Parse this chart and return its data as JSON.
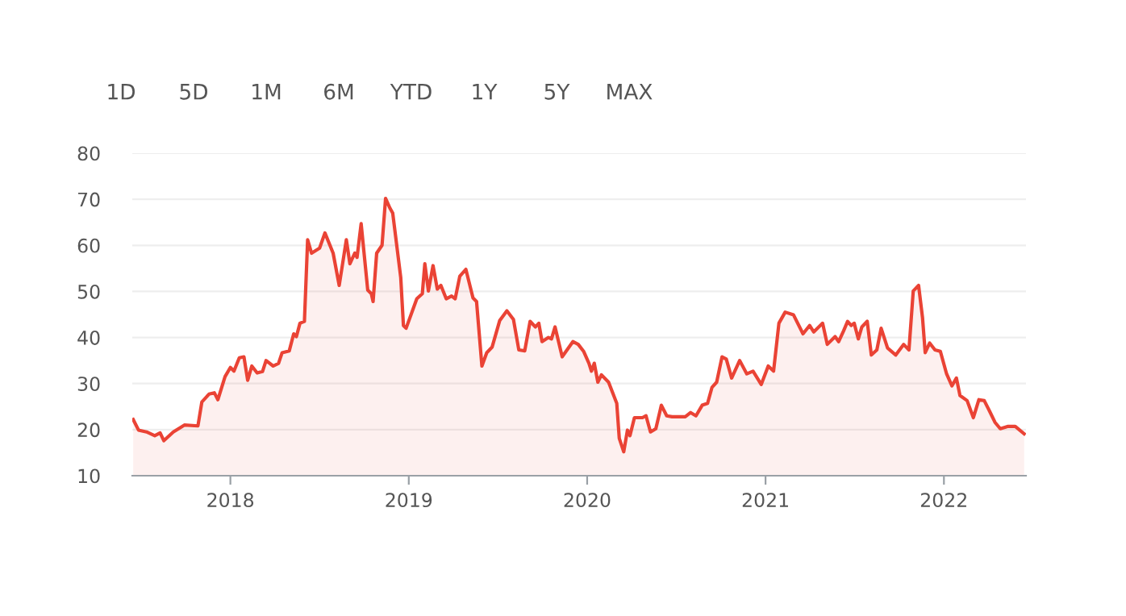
{
  "chart_data": {
    "type": "area",
    "annotations": [
      "1D",
      "5D",
      "1M",
      "6M",
      "YTD",
      "1Y",
      "5Y",
      "MAX"
    ],
    "x": [
      2017.455,
      2017.485,
      2017.53,
      2017.576,
      2017.606,
      2017.627,
      2017.68,
      2017.742,
      2017.818,
      2017.84,
      2017.88,
      2017.91,
      2017.93,
      2017.97,
      2018.0,
      2018.02,
      2018.05,
      2018.076,
      2018.097,
      2018.12,
      2018.15,
      2018.18,
      2018.2,
      2018.24,
      2018.27,
      2018.29,
      2018.33,
      2018.355,
      2018.37,
      2018.39,
      2018.415,
      2018.433,
      2018.455,
      2018.5,
      2018.53,
      2018.576,
      2018.61,
      2018.65,
      2018.67,
      2018.697,
      2018.71,
      2018.733,
      2018.77,
      2018.79,
      2018.8,
      2018.82,
      2018.85,
      2018.87,
      2018.894,
      2018.91,
      2018.955,
      2018.97,
      2018.985,
      2019.045,
      2019.076,
      2019.09,
      2019.11,
      2019.136,
      2019.16,
      2019.18,
      2019.21,
      2019.24,
      2019.26,
      2019.286,
      2019.32,
      2019.36,
      2019.38,
      2019.41,
      2019.437,
      2019.467,
      2019.51,
      2019.55,
      2019.587,
      2019.617,
      2019.65,
      2019.68,
      2019.71,
      2019.729,
      2019.747,
      2019.783,
      2019.8,
      2019.82,
      2019.86,
      2019.92,
      2019.95,
      2019.98,
      2020.01,
      2020.024,
      2020.04,
      2020.06,
      2020.08,
      2020.12,
      2020.166,
      2020.18,
      2020.205,
      2020.226,
      2020.24,
      2020.265,
      2020.31,
      2020.33,
      2020.355,
      2020.385,
      2020.416,
      2020.446,
      2020.476,
      2020.55,
      2020.58,
      2020.61,
      2020.645,
      2020.675,
      2020.7,
      2020.726,
      2020.756,
      2020.78,
      2020.81,
      2020.855,
      2020.895,
      2020.93,
      2020.976,
      2021.015,
      2021.045,
      2021.075,
      2021.11,
      2021.157,
      2021.21,
      2021.247,
      2021.27,
      2021.32,
      2021.346,
      2021.39,
      2021.41,
      2021.437,
      2021.46,
      2021.48,
      2021.497,
      2021.52,
      2021.54,
      2021.57,
      2021.593,
      2021.624,
      2021.648,
      2021.684,
      2021.73,
      2021.774,
      2021.804,
      2021.828,
      2021.858,
      2021.88,
      2021.895,
      2021.92,
      2021.95,
      2021.98,
      2022.015,
      2022.045,
      2022.07,
      2022.09,
      2022.13,
      2022.165,
      2022.196,
      2022.226,
      2022.256,
      2022.286,
      2022.316,
      2022.36,
      2022.4,
      2022.45
    ],
    "series": [
      {
        "color": "#ea4335",
        "values": [
          22.2,
          19.9,
          19.5,
          18.7,
          19.3,
          17.6,
          19.5,
          21,
          20.8,
          26,
          27.7,
          28,
          26.5,
          31.5,
          33.5,
          32.7,
          35.6,
          35.8,
          30.7,
          33.8,
          32.3,
          32.6,
          35,
          33.8,
          34.4,
          36.7,
          37.1,
          40.8,
          40.2,
          43.1,
          43.5,
          61.2,
          58.3,
          59.4,
          62.7,
          58.3,
          51.3,
          61.2,
          56,
          58.3,
          57.4,
          64.7,
          50.3,
          49.5,
          47.8,
          58.3,
          60,
          70.2,
          68.1,
          67,
          53,
          42.6,
          42,
          48.4,
          49.5,
          56,
          50.1,
          55.6,
          50.5,
          51.3,
          48.4,
          49,
          48.4,
          53.3,
          54.8,
          48.6,
          47.8,
          33.8,
          36.7,
          37.9,
          43.7,
          45.8,
          43.9,
          37.3,
          37.1,
          43.5,
          42.3,
          43.1,
          39.1,
          40,
          39.7,
          42.3,
          35.8,
          39.1,
          38.5,
          37,
          34.4,
          32.7,
          34.4,
          30.3,
          31.9,
          30.3,
          25.7,
          18.1,
          15.2,
          19.9,
          18.7,
          22.6,
          22.6,
          23,
          19.5,
          20.2,
          25.3,
          23,
          22.8,
          22.8,
          23.7,
          23,
          25.3,
          25.7,
          29.2,
          30.3,
          35.8,
          35.3,
          31.2,
          35,
          32.1,
          32.7,
          29.8,
          33.8,
          32.7,
          43.1,
          45.5,
          44.9,
          40.8,
          42.6,
          41.2,
          43.1,
          38.5,
          40.2,
          39.1,
          41.4,
          43.5,
          42.6,
          43.1,
          39.7,
          42.3,
          43.5,
          36.2,
          37.3,
          42,
          37.7,
          36.2,
          38.5,
          37.3,
          50.1,
          51.3,
          44.3,
          36.7,
          38.8,
          37.3,
          37,
          32.1,
          29.5,
          31.2,
          27.4,
          26.3,
          22.6,
          26.5,
          26.3,
          24,
          21.6,
          20.2,
          20.7,
          20.7,
          19.1
        ]
      }
    ],
    "xlim": [
      2017.45,
      2022.46
    ],
    "ylim": [
      10,
      80
    ],
    "xticks": [
      2018,
      2019,
      2020,
      2021,
      2022
    ],
    "yticks": [
      10,
      20,
      30,
      40,
      50,
      60,
      70,
      80
    ],
    "grid": "y"
  }
}
